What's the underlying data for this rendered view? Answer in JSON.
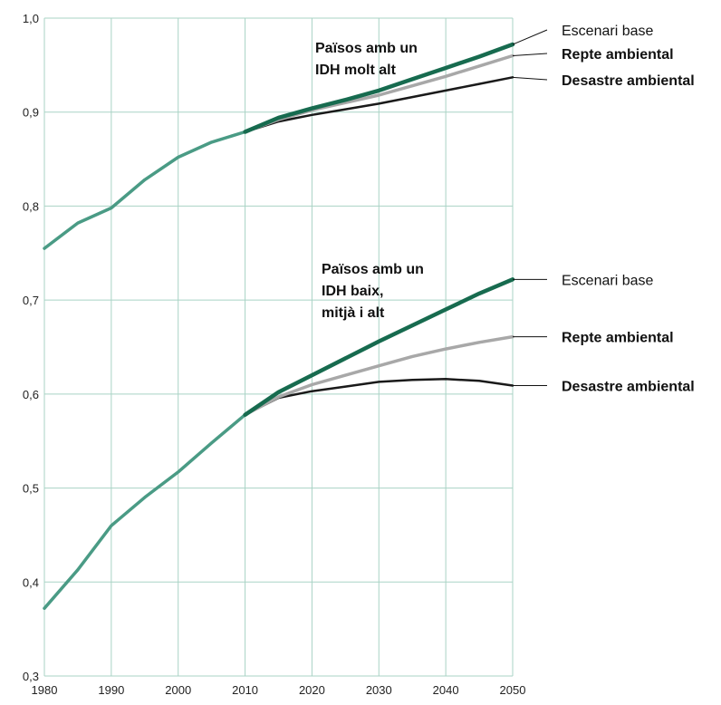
{
  "chart_data": {
    "type": "line",
    "title": "",
    "xlabel": "",
    "ylabel": "",
    "xlim": [
      1980,
      2050
    ],
    "ylim": [
      0.3,
      1.0
    ],
    "x_ticks": [
      1980,
      1990,
      2000,
      2010,
      2020,
      2030,
      2040,
      2050
    ],
    "x_tick_labels": [
      "1980",
      "1990",
      "2000",
      "2010",
      "2020",
      "2030",
      "2040",
      "2050"
    ],
    "y_ticks": [
      0.3,
      0.4,
      0.5,
      0.6,
      0.7,
      0.8,
      0.9,
      1.0
    ],
    "y_tick_labels": [
      "0,3",
      "0,4",
      "0,5",
      "0,6",
      "0,7",
      "0,8",
      "0,9",
      "1,0"
    ],
    "grid": true,
    "colors": {
      "historical": "#4a9b85",
      "base": "#176b4f",
      "challenge": "#a8a8a8",
      "disaster": "#1a1a1a",
      "grid": "#a9d3c5"
    },
    "groups": [
      {
        "annotation": [
          "Països amb un",
          "IDH molt alt"
        ],
        "series": [
          {
            "role": "historical",
            "x": [
              1980,
              1985,
              1990,
              1995,
              2000,
              2005,
              2010
            ],
            "y": [
              0.755,
              0.782,
              0.798,
              0.828,
              0.852,
              0.868,
              0.879
            ]
          },
          {
            "role": "base",
            "name": "Escenari base",
            "x": [
              2010,
              2015,
              2020,
              2025,
              2030,
              2035,
              2040,
              2045,
              2050
            ],
            "y": [
              0.879,
              0.894,
              0.904,
              0.913,
              0.923,
              0.935,
              0.947,
              0.959,
              0.972
            ]
          },
          {
            "role": "challenge",
            "name": "Repte ambiental",
            "x": [
              2010,
              2015,
              2020,
              2025,
              2030,
              2035,
              2040,
              2045,
              2050
            ],
            "y": [
              0.879,
              0.892,
              0.902,
              0.91,
              0.918,
              0.928,
              0.938,
              0.949,
              0.96
            ]
          },
          {
            "role": "disaster",
            "name": "Desastre ambiental",
            "x": [
              2010,
              2015,
              2020,
              2025,
              2030,
              2035,
              2040,
              2045,
              2050
            ],
            "y": [
              0.879,
              0.89,
              0.897,
              0.903,
              0.909,
              0.916,
              0.923,
              0.93,
              0.937
            ]
          }
        ]
      },
      {
        "annotation": [
          "Països amb un",
          "IDH baix,",
          "mitjà i alt"
        ],
        "series": [
          {
            "role": "historical",
            "x": [
              1980,
              1985,
              1990,
              1995,
              2000,
              2005,
              2010
            ],
            "y": [
              0.372,
              0.413,
              0.46,
              0.49,
              0.517,
              0.548,
              0.578
            ]
          },
          {
            "role": "base",
            "name": "Escenari base",
            "x": [
              2010,
              2015,
              2020,
              2025,
              2030,
              2035,
              2040,
              2045,
              2050
            ],
            "y": [
              0.578,
              0.602,
              0.62,
              0.638,
              0.656,
              0.673,
              0.69,
              0.707,
              0.722
            ]
          },
          {
            "role": "challenge",
            "name": "Repte ambiental",
            "x": [
              2010,
              2015,
              2020,
              2025,
              2030,
              2035,
              2040,
              2045,
              2050
            ],
            "y": [
              0.578,
              0.597,
              0.61,
              0.62,
              0.63,
              0.64,
              0.648,
              0.655,
              0.661
            ]
          },
          {
            "role": "disaster",
            "name": "Desastre ambiental",
            "x": [
              2010,
              2015,
              2020,
              2025,
              2030,
              2035,
              2040,
              2045,
              2050
            ],
            "y": [
              0.578,
              0.596,
              0.603,
              0.608,
              0.613,
              0.615,
              0.616,
              0.614,
              0.609
            ]
          }
        ]
      }
    ]
  }
}
